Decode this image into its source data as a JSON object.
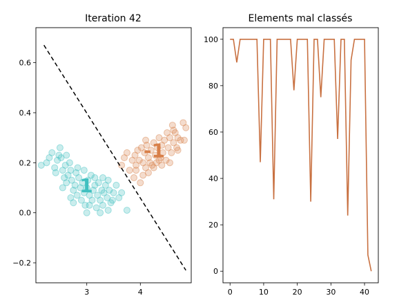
{
  "chart_data": [
    {
      "type": "scatter",
      "title": "Iteration 42",
      "xlabel": "",
      "ylabel": "",
      "xlim": [
        2.05,
        4.95
      ],
      "ylim": [
        -0.28,
        0.74
      ],
      "xticks": [
        3,
        4
      ],
      "yticks": [
        -0.2,
        0.0,
        0.2,
        0.4,
        0.6
      ],
      "ytick_labels": [
        "−0.2",
        "0.0",
        "0.2",
        "0.4",
        "0.6"
      ],
      "grid": false,
      "series": [
        {
          "label": "1",
          "color": "#40c0c0",
          "center": [
            2.99,
            0.11
          ],
          "points": [
            [
              2.15,
              0.19
            ],
            [
              2.25,
              0.2
            ],
            [
              2.3,
              0.22
            ],
            [
              2.35,
              0.24
            ],
            [
              2.4,
              0.18
            ],
            [
              2.42,
              0.16
            ],
            [
              2.45,
              0.21
            ],
            [
              2.48,
              0.23
            ],
            [
              2.5,
              0.26
            ],
            [
              2.52,
              0.22
            ],
            [
              2.55,
              0.17
            ],
            [
              2.58,
              0.14
            ],
            [
              2.6,
              0.19
            ],
            [
              2.62,
              0.12
            ],
            [
              2.65,
              0.15
            ],
            [
              2.68,
              0.2
            ],
            [
              2.7,
              0.17
            ],
            [
              2.72,
              0.13
            ],
            [
              2.75,
              0.09
            ],
            [
              2.78,
              0.11
            ],
            [
              2.8,
              0.16
            ],
            [
              2.82,
              0.07
            ],
            [
              2.85,
              0.14
            ],
            [
              2.88,
              0.1
            ],
            [
              2.9,
              0.05
            ],
            [
              2.92,
              0.12
            ],
            [
              2.95,
              0.08
            ],
            [
              2.97,
              0.03
            ],
            [
              3.0,
              0.1
            ],
            [
              3.02,
              0.13
            ],
            [
              3.05,
              0.07
            ],
            [
              3.08,
              0.15
            ],
            [
              3.1,
              0.05
            ],
            [
              3.12,
              0.09
            ],
            [
              3.15,
              0.11
            ],
            [
              3.18,
              0.02
            ],
            [
              3.2,
              0.07
            ],
            [
              3.22,
              0.12
            ],
            [
              3.25,
              0.05
            ],
            [
              3.28,
              0.09
            ],
            [
              3.3,
              0.03
            ],
            [
              3.32,
              0.08
            ],
            [
              3.35,
              0.11
            ],
            [
              3.38,
              0.06
            ],
            [
              3.4,
              0.01
            ],
            [
              3.42,
              0.09
            ],
            [
              3.45,
              0.04
            ],
            [
              3.5,
              0.08
            ],
            [
              3.55,
              0.11
            ],
            [
              3.6,
              0.06
            ],
            [
              3.65,
              0.08
            ],
            [
              3.75,
              0.01
            ],
            [
              2.55,
              0.1
            ],
            [
              2.7,
              0.06
            ],
            [
              3.0,
              0.0
            ],
            [
              3.3,
              0.14
            ],
            [
              2.62,
              0.23
            ],
            [
              2.83,
              0.18
            ],
            [
              3.15,
              0.14
            ],
            [
              3.4,
              0.13
            ],
            [
              2.95,
              0.17
            ],
            [
              3.05,
              0.03
            ],
            [
              3.25,
              0.0
            ],
            [
              2.75,
              0.04
            ],
            [
              3.48,
              0.05
            ]
          ]
        },
        {
          "label": "-1",
          "color": "#d8804a",
          "center": [
            4.26,
            0.25
          ],
          "points": [
            [
              3.65,
              0.19
            ],
            [
              3.7,
              0.22
            ],
            [
              3.75,
              0.24
            ],
            [
              3.8,
              0.17
            ],
            [
              3.85,
              0.21
            ],
            [
              3.88,
              0.14
            ],
            [
              3.9,
              0.23
            ],
            [
              3.92,
              0.19
            ],
            [
              3.95,
              0.25
            ],
            [
              3.98,
              0.21
            ],
            [
              4.0,
              0.12
            ],
            [
              4.02,
              0.26
            ],
            [
              4.05,
              0.2
            ],
            [
              4.08,
              0.24
            ],
            [
              4.1,
              0.18
            ],
            [
              4.12,
              0.27
            ],
            [
              4.15,
              0.22
            ],
            [
              4.18,
              0.2
            ],
            [
              4.2,
              0.25
            ],
            [
              4.22,
              0.19
            ],
            [
              4.25,
              0.28
            ],
            [
              4.28,
              0.23
            ],
            [
              4.3,
              0.2
            ],
            [
              4.32,
              0.26
            ],
            [
              4.35,
              0.3
            ],
            [
              4.38,
              0.22
            ],
            [
              4.4,
              0.27
            ],
            [
              4.42,
              0.24
            ],
            [
              4.45,
              0.29
            ],
            [
              4.48,
              0.21
            ],
            [
              4.5,
              0.32
            ],
            [
              4.52,
              0.26
            ],
            [
              4.55,
              0.3
            ],
            [
              4.58,
              0.24
            ],
            [
              4.6,
              0.35
            ],
            [
              4.62,
              0.28
            ],
            [
              4.65,
              0.32
            ],
            [
              4.68,
              0.26
            ],
            [
              4.7,
              0.3
            ],
            [
              4.75,
              0.29
            ],
            [
              4.8,
              0.36
            ],
            [
              4.85,
              0.34
            ],
            [
              4.82,
              0.29
            ],
            [
              4.7,
              0.25
            ],
            [
              4.15,
              0.16
            ],
            [
              4.25,
              0.18
            ],
            [
              4.4,
              0.19
            ],
            [
              3.92,
              0.17
            ],
            [
              4.05,
              0.15
            ],
            [
              4.35,
              0.21
            ],
            [
              4.55,
              0.2
            ],
            [
              4.62,
              0.33
            ],
            [
              4.1,
              0.29
            ]
          ]
        }
      ],
      "boundary_line": {
        "style": "dashed",
        "color": "#000000",
        "points": [
          [
            2.2,
            0.67
          ],
          [
            4.85,
            -0.23
          ]
        ]
      }
    },
    {
      "type": "line",
      "title": "Elements mal classés",
      "xlabel": "",
      "ylabel": "",
      "xlim": [
        -2.1,
        44.1
      ],
      "ylim": [
        -5,
        105
      ],
      "xticks": [
        0,
        10,
        20,
        30,
        40
      ],
      "yticks": [
        0,
        20,
        40,
        60,
        80,
        100
      ],
      "grid": false,
      "series": [
        {
          "color": "#c87040",
          "x": [
            0,
            1,
            2,
            3,
            4,
            5,
            6,
            7,
            8,
            9,
            10,
            11,
            12,
            13,
            14,
            15,
            16,
            17,
            18,
            19,
            20,
            21,
            22,
            23,
            24,
            25,
            26,
            27,
            28,
            29,
            30,
            31,
            32,
            33,
            34,
            35,
            36,
            37,
            38,
            39,
            40,
            41,
            42
          ],
          "values": [
            100,
            100,
            90,
            100,
            100,
            100,
            100,
            100,
            100,
            47,
            100,
            100,
            100,
            31,
            100,
            100,
            100,
            100,
            100,
            78,
            100,
            100,
            100,
            100,
            30,
            100,
            100,
            75,
            100,
            100,
            100,
            100,
            57,
            100,
            100,
            24,
            91,
            100,
            100,
            100,
            100,
            7,
            0
          ]
        }
      ]
    }
  ]
}
